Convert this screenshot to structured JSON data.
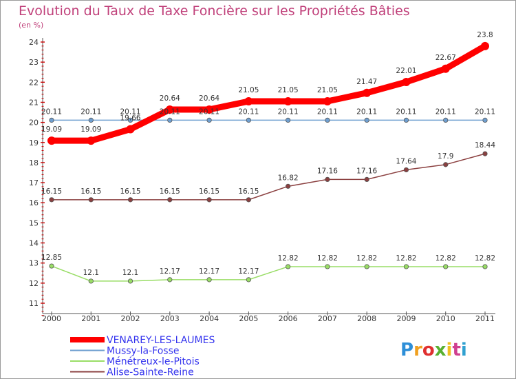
{
  "chart_data": {
    "type": "line",
    "title": "Evolution du Taux de Taxe Foncière sur les Propriétés Bâties",
    "ylabel": "(en %)",
    "xlabel": "",
    "x": [
      "2000",
      "2001",
      "2002",
      "2003",
      "2004",
      "2005",
      "2006",
      "2007",
      "2008",
      "2009",
      "2010",
      "2011"
    ],
    "ylim": [
      11,
      24
    ],
    "yticks": [
      "11",
      "12",
      "13",
      "14",
      "15",
      "16",
      "17",
      "18",
      "19",
      "20",
      "21",
      "22",
      "23",
      "24"
    ],
    "grid": false,
    "legend_position": "bottom-left",
    "series": [
      {
        "name": "VENAREY-LES-LAUMES",
        "color": "#ff0000",
        "values": [
          19.09,
          19.09,
          19.66,
          20.64,
          20.64,
          21.05,
          21.05,
          21.05,
          21.47,
          22.01,
          22.67,
          23.8
        ],
        "labels": [
          "19.09",
          "19.09",
          "19.66",
          "20.64",
          "20.64",
          "21.05",
          "21.05",
          "21.05",
          "21.47",
          "22.01",
          "22.67",
          "23.8"
        ]
      },
      {
        "name": "Mussy-la-Fosse",
        "color": "#6f9fd0",
        "values": [
          20.11,
          20.11,
          20.11,
          20.11,
          20.11,
          20.11,
          20.11,
          20.11,
          20.11,
          20.11,
          20.11,
          20.11
        ],
        "labels": [
          "20.11",
          "20.11",
          "20.11",
          "20.11",
          "20.11",
          "20.11",
          "20.11",
          "20.11",
          "20.11",
          "20.11",
          "20.11",
          "20.11"
        ]
      },
      {
        "name": "Ménétreux-le-Pitois",
        "color": "#99dd66",
        "values": [
          12.85,
          12.1,
          12.1,
          12.17,
          12.17,
          12.17,
          12.82,
          12.82,
          12.82,
          12.82,
          12.82,
          12.82
        ],
        "labels": [
          "12.85",
          "12.1",
          "12.1",
          "12.17",
          "12.17",
          "12.17",
          "12.82",
          "12.82",
          "12.82",
          "12.82",
          "12.82",
          "12.82"
        ]
      },
      {
        "name": "Alise-Sainte-Reine",
        "color": "#8b4040",
        "values": [
          16.15,
          16.15,
          16.15,
          16.15,
          16.15,
          16.15,
          16.82,
          17.16,
          17.16,
          17.64,
          17.9,
          18.44
        ],
        "labels": [
          "16.15",
          "16.15",
          "16.15",
          "16.15",
          "16.15",
          "16.15",
          "16.82",
          "17.16",
          "17.16",
          "17.64",
          "17.9",
          "18.44"
        ]
      }
    ]
  },
  "logo": {
    "letters": [
      "P",
      "r",
      "o",
      "x",
      "i",
      "t",
      "i"
    ],
    "colors": [
      "#2e8fd8",
      "#f0a020",
      "#e03030",
      "#58b030",
      "#f0c020",
      "#d04090",
      "#30a0d0"
    ]
  }
}
